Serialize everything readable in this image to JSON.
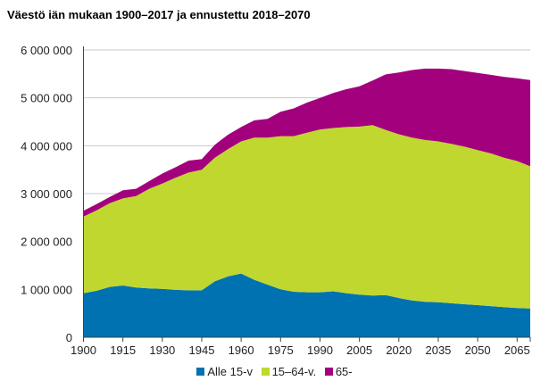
{
  "title": "Väestö iän mukaan 1900–2017 ja ennustettu 2018–2070",
  "chart_data": {
    "type": "area",
    "stacked": true,
    "title": "Väestö iän mukaan 1900–2017 ja ennustettu 2018–2070",
    "xlabel": "",
    "ylabel": "",
    "xlim": [
      1900,
      2070
    ],
    "ylim": [
      0,
      6000000
    ],
    "x_ticks": [
      "1900",
      "1915",
      "1930",
      "1945",
      "1960",
      "1975",
      "1990",
      "2005",
      "2020",
      "2035",
      "2050",
      "2065"
    ],
    "y_ticks": [
      "0",
      "1 000 000",
      "2 000 000",
      "3 000 000",
      "4 000 000",
      "5 000 000",
      "6 000 000"
    ],
    "grid": "horizontal",
    "legend": "bottom",
    "x": [
      1900,
      1905,
      1910,
      1915,
      1920,
      1925,
      1930,
      1935,
      1940,
      1945,
      1950,
      1955,
      1960,
      1965,
      1970,
      1975,
      1980,
      1985,
      1990,
      1995,
      2000,
      2005,
      2010,
      2015,
      2020,
      2025,
      2030,
      2035,
      2040,
      2045,
      2050,
      2055,
      2060,
      2065,
      2070
    ],
    "series": [
      {
        "name": "Alle 15-v",
        "color": "#0072b2",
        "values": [
          920000,
          970000,
          1050000,
          1080000,
          1040000,
          1020000,
          1010000,
          990000,
          980000,
          980000,
          1170000,
          1270000,
          1330000,
          1200000,
          1100000,
          1000000,
          950000,
          940000,
          940000,
          960000,
          920000,
          890000,
          870000,
          880000,
          820000,
          770000,
          740000,
          730000,
          710000,
          690000,
          670000,
          650000,
          630000,
          610000,
          600000
        ]
      },
      {
        "name": "15–64-v.",
        "color": "#c0d72f",
        "values": [
          1600000,
          1680000,
          1750000,
          1820000,
          1910000,
          2080000,
          2200000,
          2340000,
          2460000,
          2520000,
          2580000,
          2660000,
          2760000,
          2970000,
          3070000,
          3200000,
          3250000,
          3330000,
          3400000,
          3410000,
          3470000,
          3510000,
          3560000,
          3450000,
          3420000,
          3400000,
          3380000,
          3360000,
          3330000,
          3290000,
          3240000,
          3190000,
          3120000,
          3070000,
          2970000
        ]
      },
      {
        "name": "65-",
        "color": "#a3007d",
        "values": [
          120000,
          130000,
          130000,
          170000,
          150000,
          160000,
          210000,
          220000,
          250000,
          220000,
          270000,
          300000,
          300000,
          360000,
          390000,
          510000,
          580000,
          630000,
          660000,
          730000,
          790000,
          840000,
          930000,
          1160000,
          1290000,
          1410000,
          1490000,
          1520000,
          1560000,
          1580000,
          1610000,
          1640000,
          1690000,
          1730000,
          1800000
        ]
      }
    ]
  }
}
